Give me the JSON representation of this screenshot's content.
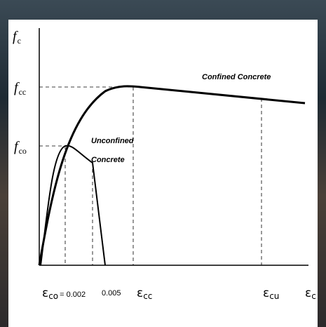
{
  "y_axis_label": {
    "main": "f",
    "sub": "c"
  },
  "fcc_label": {
    "main": "f",
    "sub": "cc"
  },
  "fco_label": {
    "main": "f",
    "sub": "co"
  },
  "confined_label": "Confined Concrete",
  "unconfined_label": [
    "Unconfined",
    "Concrete"
  ],
  "x_labels": {
    "eco": {
      "main": "ε",
      "sub": "co",
      "value": "= 0.002"
    },
    "e005": "0.005",
    "ecc": {
      "main": "ε",
      "sub": "cc"
    },
    "ecu": {
      "main": "ε",
      "sub": "cu"
    },
    "ec": {
      "main": "ε",
      "sub": "c"
    }
  }
}
